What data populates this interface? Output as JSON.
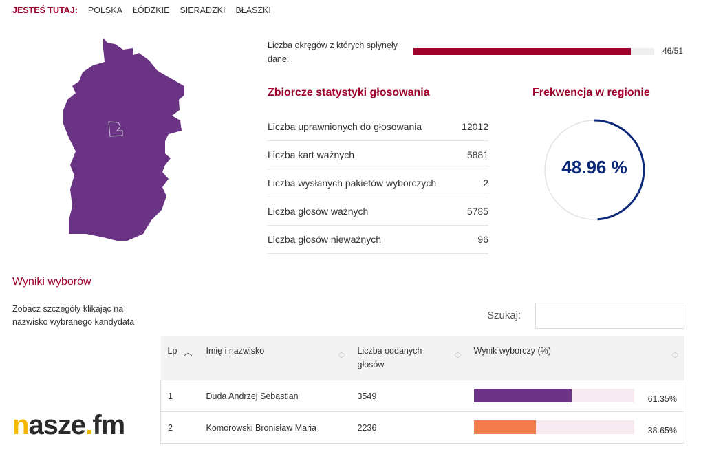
{
  "breadcrumb": {
    "label": "JESTEŚ TUTAJ:",
    "items": [
      "POLSKA",
      "ŁÓDZKIE",
      "SIERADZKI",
      "BŁASZKI"
    ]
  },
  "progress": {
    "label": "Liczba okręgów z których spłynęły dane:",
    "value_text": "46/51",
    "fraction": 0.902,
    "color": "#a0002c"
  },
  "stats": {
    "title": "Zbiorcze statystyki głosowania",
    "rows": [
      {
        "label": "Liczba uprawnionych do głosowania",
        "value": "12012"
      },
      {
        "label": "Liczba kart ważnych",
        "value": "5881"
      },
      {
        "label": "Liczba wysłanych pakietów wyborczych",
        "value": "2"
      },
      {
        "label": "Liczba głosów ważnych",
        "value": "5785"
      },
      {
        "label": "Liczba głosów nieważnych",
        "value": "96"
      }
    ]
  },
  "turnout": {
    "title": "Frekwencja w regionie",
    "value_text": "48.96 %",
    "percent": 48.96,
    "color": "#0d2a7a"
  },
  "results": {
    "title": "Wyniki wyborów",
    "description": "Zobacz szczegóły klikając na nazwisko wybranego kandydata",
    "search_label": "Szukaj:",
    "search_value": "",
    "columns": [
      "Lp",
      "Imię i nazwisko",
      "Liczba oddanych głosów",
      "Wynik wyborczy (%)"
    ],
    "rows": [
      {
        "lp": "1",
        "name": "Duda Andrzej Sebastian",
        "votes": "3549",
        "pct_text": "61.35%",
        "pct": 61.35,
        "color": "#6a3384"
      },
      {
        "lp": "2",
        "name": "Komorowski Bronisław Maria",
        "votes": "2236",
        "pct_text": "38.65%",
        "pct": 38.65,
        "color": "#f47c4c"
      }
    ]
  },
  "logo": "nasze.fm",
  "map_color": "#6a3384"
}
